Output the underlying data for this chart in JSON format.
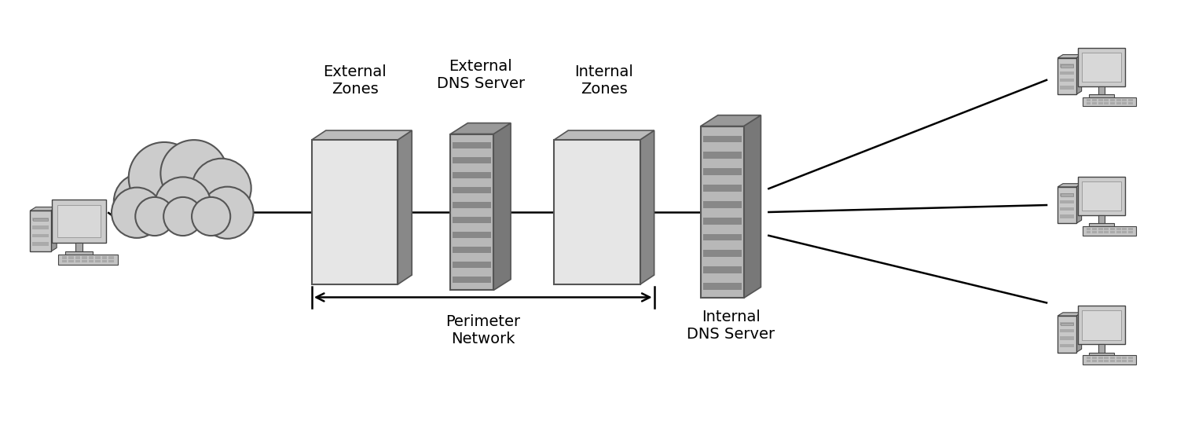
{
  "bg_color": "#ffffff",
  "figure_width": 15.21,
  "figure_height": 5.41,
  "labels": {
    "external_zones": "External\nZones",
    "external_dns": "External\nDNS Server",
    "internal_zones": "Internal\nZones",
    "internal_dns": "Internal\nDNS Server",
    "perimeter": "Perimeter\nNetwork"
  },
  "colors": {
    "wall_face": "#e6e6e6",
    "wall_side": "#888888",
    "wall_top": "#bbbbbb",
    "server_front": "#b8b8b8",
    "server_side": "#787878",
    "server_top": "#999999",
    "server_stripe_dark": "#888888",
    "server_stripe_light": "#d0d0d0",
    "cloud_fill": "#cccccc",
    "cloud_edge": "#555555"
  }
}
